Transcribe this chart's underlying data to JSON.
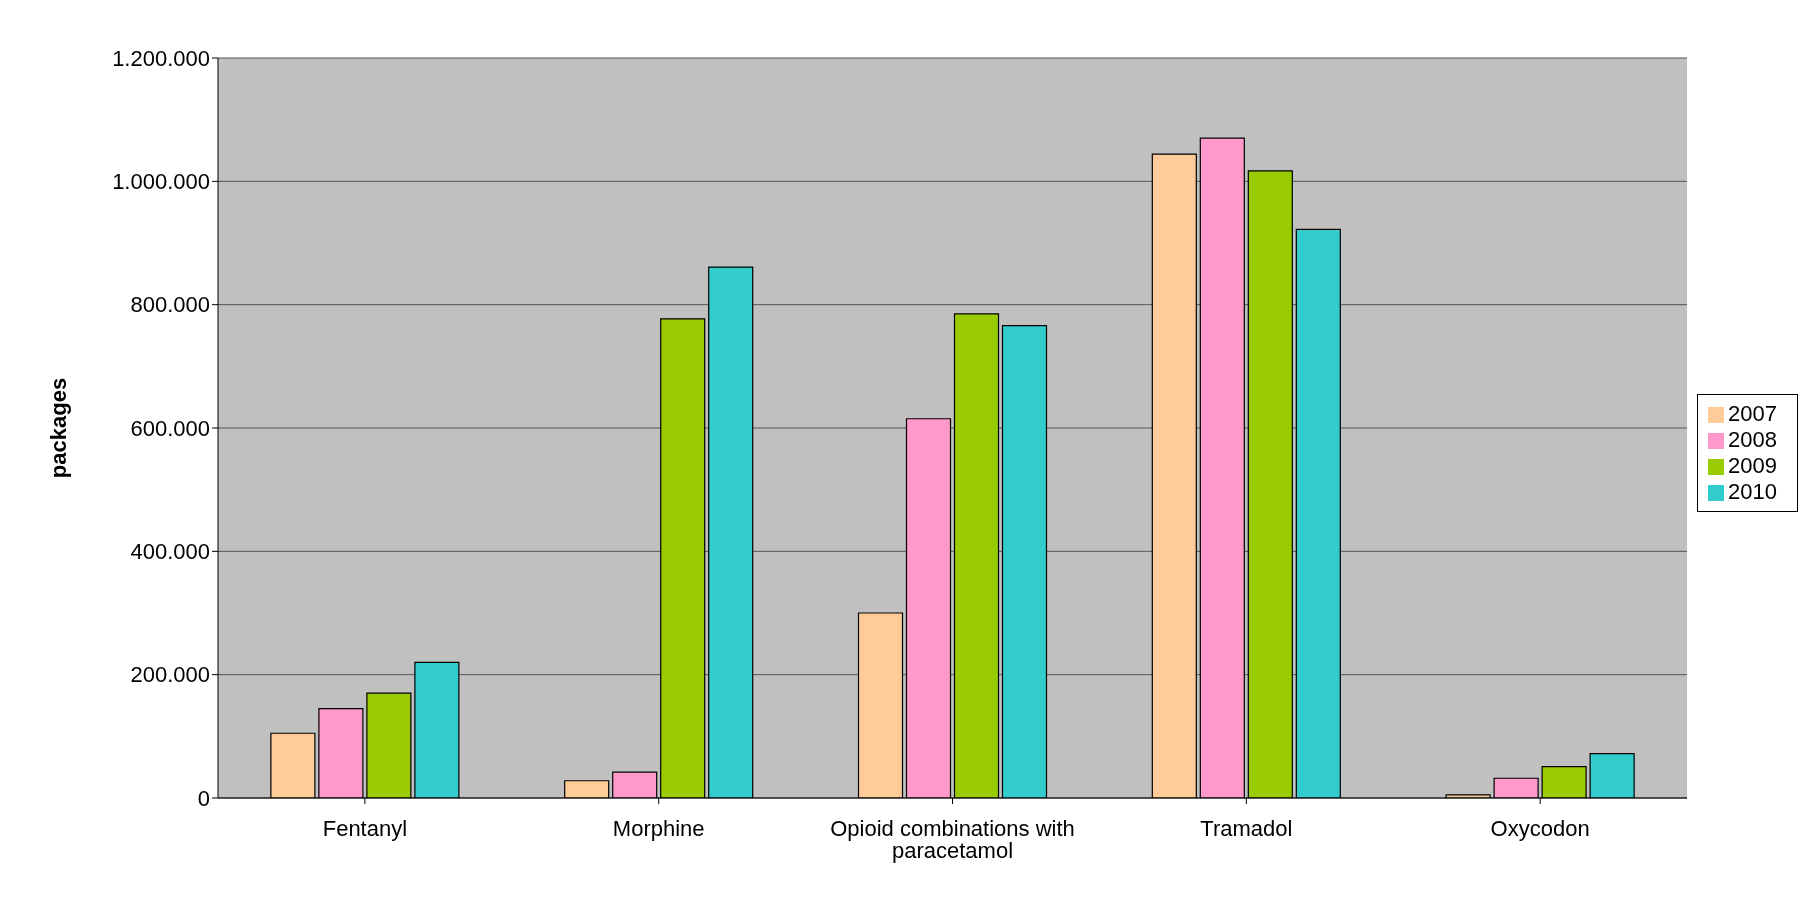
{
  "chart_data": {
    "type": "bar",
    "ylabel": "packages",
    "categories": [
      "Fentanyl",
      "Morphine",
      "Opioid combinations with paracetamol",
      "Tramadol",
      "Oxycodon"
    ],
    "series": [
      {
        "name": "2007",
        "color": "#ffcc99",
        "values": [
          105000,
          28000,
          300000,
          1044000,
          5000
        ]
      },
      {
        "name": "2008",
        "color": "#ff99cc",
        "values": [
          145000,
          42000,
          615000,
          1070000,
          32000
        ]
      },
      {
        "name": "2009",
        "color": "#99cc00",
        "values": [
          170000,
          777000,
          785000,
          1017000,
          51000
        ]
      },
      {
        "name": "2010",
        "color": "#33cccc",
        "values": [
          220000,
          861000,
          766000,
          922000,
          72000
        ]
      }
    ],
    "ylim": [
      0,
      1200000
    ],
    "yticks": [
      {
        "value": 0,
        "label": "0"
      },
      {
        "value": 200000,
        "label": "200.000"
      },
      {
        "value": 400000,
        "label": "400.000"
      },
      {
        "value": 600000,
        "label": "600.000"
      },
      {
        "value": 800000,
        "label": "800.000"
      },
      {
        "value": 1000000,
        "label": "1.000.000"
      },
      {
        "value": 1200000,
        "label": "1.200.000"
      }
    ],
    "grid": "y",
    "legend": "right"
  }
}
